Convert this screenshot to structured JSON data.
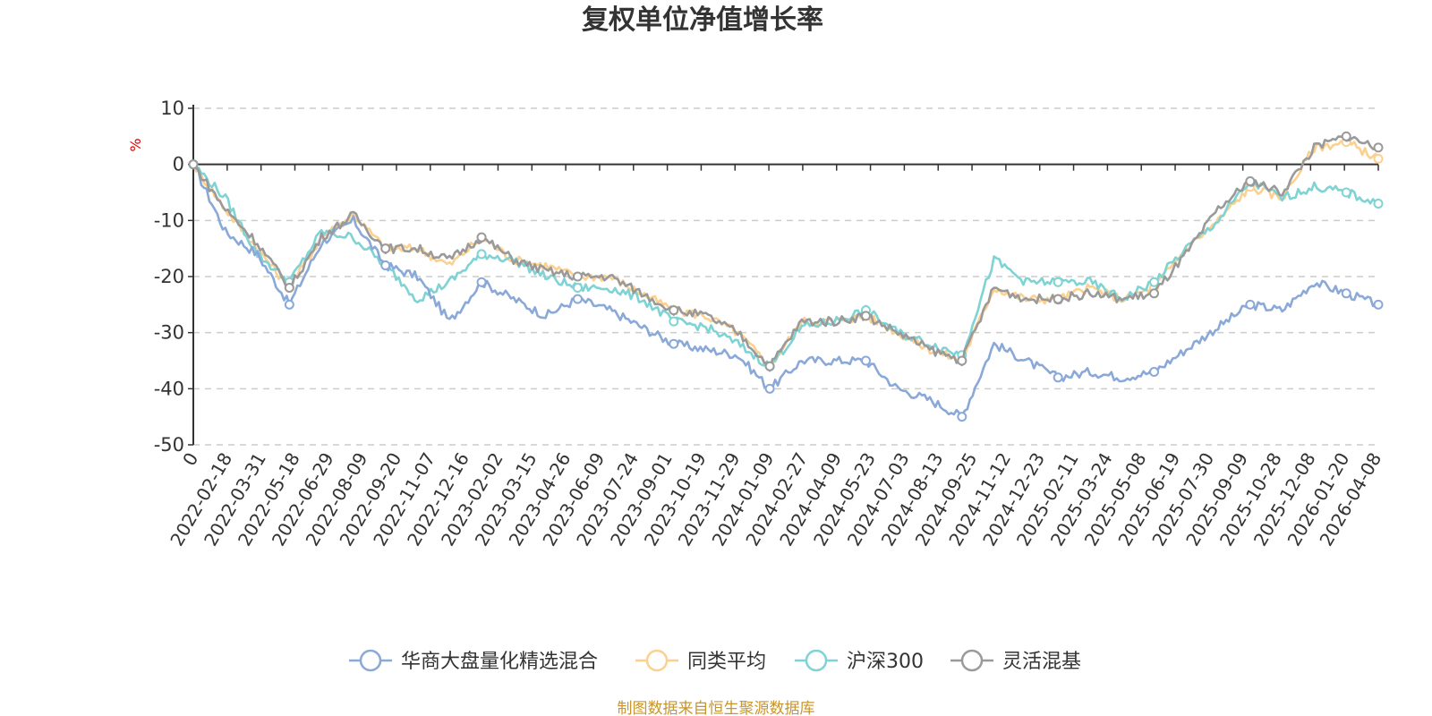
{
  "chart_data": {
    "type": "line",
    "title": "复权单位净值增长率",
    "ylabel": "%",
    "ylim": [
      -50,
      10
    ],
    "yticks": [
      10,
      0,
      -10,
      -20,
      -30,
      -40,
      -50
    ],
    "grid": true,
    "x_ticks": [
      "0",
      "2022-02-18",
      "2022-03-31",
      "2022-05-18",
      "2022-06-29",
      "2022-08-09",
      "2022-09-20",
      "2022-11-07",
      "2022-12-16",
      "2023-02-02",
      "2023-03-15",
      "2023-04-26",
      "2023-06-09",
      "2023-07-24",
      "2023-09-01",
      "2023-10-19",
      "2023-11-29",
      "2024-01-09",
      "2024-02-27",
      "2024-04-09",
      "2024-05-23",
      "2024-07-03",
      "2024-08-13",
      "2024-09-25",
      "2024-11-12",
      "2024-12-23",
      "2025-02-11",
      "2025-03-24",
      "2025-05-08",
      "2025-06-19",
      "2025-07-30",
      "2025-09-09",
      "2025-10-28",
      "2025-12-08",
      "2026-01-20",
      "2026-04-08"
    ],
    "legend_position": "bottom",
    "series": [
      {
        "name": "华商大盘量化精选混合",
        "color": "#8aa9d8",
        "values": [
          0,
          -12,
          -16,
          -25,
          -14,
          -10,
          -18,
          -20,
          -28,
          -21,
          -24,
          -27,
          -24,
          -26,
          -29,
          -32,
          -33,
          -34,
          -40,
          -35,
          -35,
          -35,
          -40,
          -42,
          -45,
          -32,
          -35,
          -38,
          -37,
          -38,
          -37,
          -33,
          -29,
          -25,
          -26,
          -21,
          -23,
          -25
        ]
      },
      {
        "name": "同类平均",
        "color": "#fcd08f",
        "values": [
          0,
          -8,
          -15,
          -22,
          -13,
          -9,
          -15,
          -15,
          -18,
          -13,
          -17,
          -18,
          -20,
          -20,
          -23,
          -26,
          -27,
          -30,
          -36,
          -28,
          -28,
          -27,
          -30,
          -33,
          -35,
          -22,
          -24,
          -24,
          -22,
          -24,
          -22,
          -15,
          -10,
          -4,
          -6,
          3,
          4,
          1
        ]
      },
      {
        "name": "沪深300",
        "color": "#7fd3d4",
        "values": [
          0,
          -6,
          -16,
          -21,
          -12,
          -13,
          -18,
          -24,
          -21,
          -16,
          -17,
          -20,
          -22,
          -22,
          -24,
          -28,
          -29,
          -32,
          -36,
          -29,
          -28,
          -26,
          -30,
          -32,
          -34,
          -17,
          -21,
          -21,
          -21,
          -24,
          -21,
          -15,
          -10,
          -3,
          -6,
          -4,
          -5,
          -7
        ]
      },
      {
        "name": "灵活混基",
        "color": "#9a9a9a",
        "values": [
          0,
          -8,
          -14,
          -22,
          -13,
          -9,
          -15,
          -15,
          -17,
          -13,
          -17,
          -19,
          -20,
          -20,
          -23,
          -26,
          -27,
          -30,
          -36,
          -28,
          -28,
          -27,
          -30,
          -33,
          -35,
          -22,
          -24,
          -24,
          -23,
          -24,
          -23,
          -16,
          -8,
          -3,
          -5,
          3,
          5,
          3
        ]
      }
    ]
  },
  "footer": {
    "source": "制图数据来自恒生聚源数据库"
  }
}
